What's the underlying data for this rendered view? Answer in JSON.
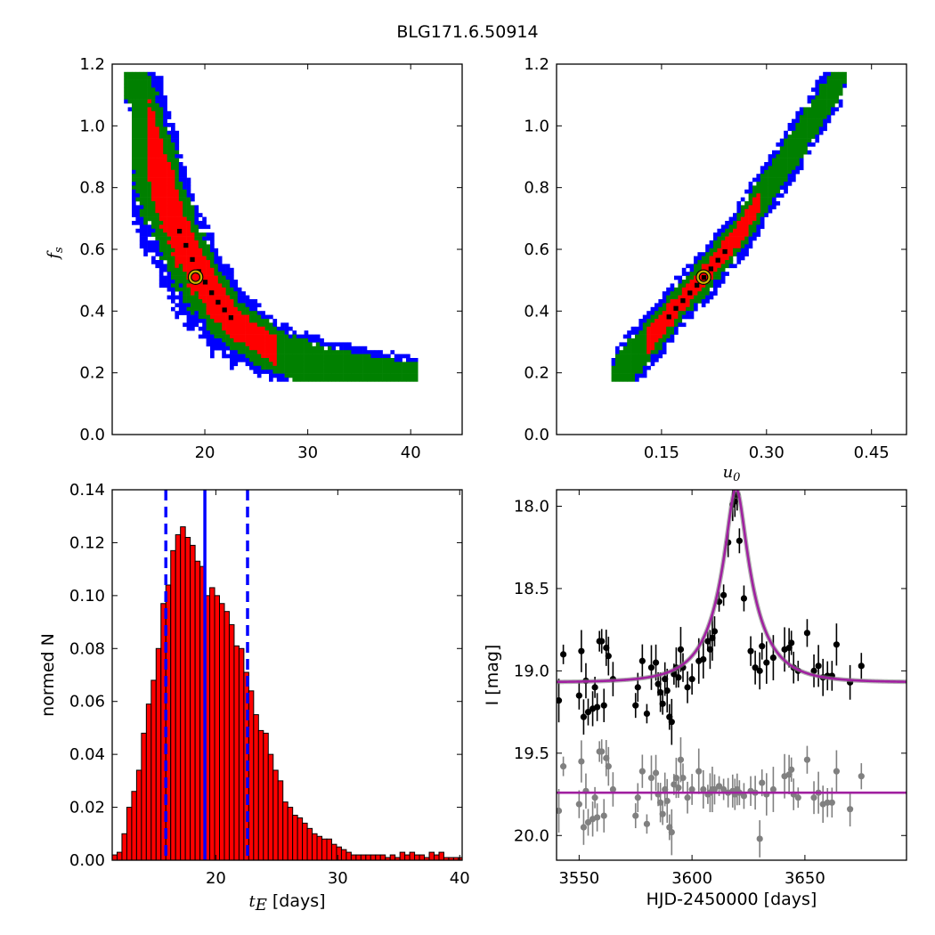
{
  "figure": {
    "title": "BLG171.6.50914"
  },
  "chart_data": [
    {
      "id": "fs_vs_tE",
      "type": "heatmap",
      "title": "",
      "xlabel": "",
      "ylabel": "f_s",
      "ylabel_display": "f",
      "ylabel_sub": "s",
      "xlim": [
        11,
        45
      ],
      "ylim": [
        0.0,
        1.2
      ],
      "xticks": [
        20,
        30,
        40
      ],
      "yticks": [
        0.0,
        0.2,
        0.4,
        0.6,
        0.8,
        1.0,
        1.2
      ],
      "ytick_labels": [
        "0.0",
        "0.2",
        "0.4",
        "0.6",
        "0.8",
        "1.0",
        "1.2"
      ],
      "levels": [
        {
          "name": "outer",
          "color": "#0000ff"
        },
        {
          "name": "middle",
          "color": "#008000"
        },
        {
          "name": "inner",
          "color": "#ff0000"
        },
        {
          "name": "best-fit cells",
          "color": "#000000"
        }
      ],
      "ridge": {
        "x": [
          12.8,
          14.5,
          16,
          17.5,
          19,
          21,
          23,
          25.5,
          28,
          31,
          34.5,
          38,
          40
        ],
        "y": [
          1.17,
          0.95,
          0.8,
          0.66,
          0.55,
          0.44,
          0.36,
          0.3,
          0.255,
          0.225,
          0.2,
          0.185,
          0.175
        ]
      },
      "widths": {
        "outer": 2.4,
        "middle": 1.7,
        "inner": 1.0
      },
      "red_range": [
        14.5,
        27
      ],
      "best_fit": {
        "x": 19.1,
        "y": 0.51,
        "color": "#c8b400"
      }
    },
    {
      "id": "fs_vs_u0",
      "type": "heatmap",
      "title": "",
      "xlabel": "u_0",
      "xlabel_display": "u",
      "xlabel_sub": "0",
      "ylabel": "",
      "xlim": [
        0.0,
        0.5
      ],
      "ylim": [
        0.0,
        1.2
      ],
      "xticks": [
        0.15,
        0.3,
        0.45
      ],
      "xtick_labels": [
        "0.15",
        "0.30",
        "0.45"
      ],
      "yticks": [
        0.0,
        0.2,
        0.4,
        0.6,
        0.8,
        1.0,
        1.2
      ],
      "ytick_labels": [
        "0.0",
        "0.2",
        "0.4",
        "0.6",
        "0.8",
        "1.0",
        "1.2"
      ],
      "ridge": {
        "x": [
          0.085,
          0.13,
          0.17,
          0.21,
          0.26,
          0.3,
          0.34,
          0.38,
          0.41
        ],
        "y": [
          0.18,
          0.3,
          0.41,
          0.51,
          0.65,
          0.79,
          0.93,
          1.07,
          1.17
        ]
      },
      "widths": {
        "outer": 0.022,
        "middle": 0.015,
        "inner": 0.008
      },
      "red_range": [
        0.13,
        0.29
      ],
      "best_fit": {
        "x": 0.21,
        "y": 0.51,
        "color": "#c8b400"
      }
    },
    {
      "id": "tE_histogram",
      "type": "bar",
      "title": "",
      "xlabel": "t_E [days]",
      "xlabel_math": "t",
      "xlabel_sub": "E",
      "xlabel_rest": " [days]",
      "ylabel": "normed N",
      "xlim": [
        11.5,
        40.2
      ],
      "ylim": [
        0.0,
        0.14
      ],
      "xticks": [
        20,
        30,
        40
      ],
      "yticks": [
        0.0,
        0.02,
        0.04,
        0.06,
        0.08,
        0.1,
        0.12,
        0.14
      ],
      "ytick_labels": [
        "0.00",
        "0.02",
        "0.04",
        "0.06",
        "0.08",
        "0.10",
        "0.12",
        "0.14"
      ],
      "bar_color": "#ff0000",
      "bin_start": 11.5,
      "bin_width": 0.4,
      "values": [
        0.002,
        0.003,
        0.01,
        0.02,
        0.026,
        0.034,
        0.048,
        0.059,
        0.068,
        0.08,
        0.097,
        0.104,
        0.117,
        0.123,
        0.126,
        0.122,
        0.119,
        0.113,
        0.111,
        0.1,
        0.103,
        0.1,
        0.097,
        0.094,
        0.089,
        0.081,
        0.08,
        0.071,
        0.064,
        0.055,
        0.049,
        0.048,
        0.04,
        0.034,
        0.03,
        0.022,
        0.02,
        0.017,
        0.016,
        0.014,
        0.012,
        0.01,
        0.009,
        0.008,
        0.008,
        0.006,
        0.005,
        0.004,
        0.003,
        0.002,
        0.002,
        0.002,
        0.002,
        0.002,
        0.002,
        0.002,
        0.001,
        0.002,
        0.001,
        0.003,
        0.002,
        0.003,
        0.002,
        0.002,
        0.001,
        0.003,
        0.002,
        0.003,
        0.001,
        0.001,
        0.001,
        0.001
      ],
      "median_line": {
        "x": 19.1,
        "color": "#0000ff"
      },
      "interval_lines": [
        15.9,
        22.6
      ]
    },
    {
      "id": "light_curve",
      "type": "scatter",
      "title": "",
      "xlabel": "HJD-2450000 [days]",
      "ylabel": "I [mag]",
      "xlim": [
        3540,
        3695
      ],
      "ylim": [
        20.15,
        17.9
      ],
      "y_inverted": true,
      "xticks": [
        3550,
        3600,
        3650
      ],
      "yticks": [
        18.0,
        18.5,
        19.0,
        19.5,
        20.0
      ],
      "ytick_labels": [
        "18.0",
        "18.5",
        "19.0",
        "19.5",
        "20.0"
      ],
      "model": {
        "t0": 3619.5,
        "tE": 19.1,
        "u0": 0.21,
        "fs": 0.51,
        "i_base": 19.07,
        "color": "#a020a0"
      },
      "residual_baseline": 19.74,
      "data_points": {
        "color": "#000000",
        "t": [
          3541,
          3543,
          3550,
          3551,
          3552,
          3553,
          3554,
          3556,
          3557,
          3558,
          3559,
          3560,
          3561,
          3562,
          3563,
          3565,
          3575,
          3576,
          3578,
          3580,
          3582,
          3584,
          3585,
          3586,
          3587,
          3588,
          3589,
          3590,
          3591,
          3592,
          3593,
          3594,
          3595,
          3596,
          3598,
          3600,
          3603,
          3605,
          3607,
          3608,
          3609,
          3610,
          3612,
          3614,
          3616,
          3618,
          3619,
          3620,
          3621,
          3623,
          3626,
          3628,
          3630,
          3631,
          3633,
          3636,
          3641,
          3643,
          3644,
          3645,
          3647,
          3651,
          3654,
          3656,
          3658,
          3660,
          3662,
          3664,
          3670,
          3675
        ],
        "mag": [
          19.18,
          18.9,
          19.15,
          18.88,
          19.28,
          19.06,
          19.25,
          19.23,
          19.1,
          19.22,
          18.82,
          18.82,
          19.21,
          18.86,
          18.91,
          19.05,
          19.21,
          19.1,
          18.94,
          19.26,
          18.98,
          18.95,
          19.08,
          19.13,
          19.2,
          19.05,
          19.12,
          19.28,
          19.31,
          19.02,
          18.98,
          19.04,
          18.87,
          18.98,
          19.1,
          19.05,
          18.94,
          18.93,
          18.82,
          18.87,
          18.8,
          18.76,
          18.58,
          18.54,
          18.22,
          17.99,
          17.97,
          17.93,
          18.21,
          18.56,
          18.88,
          18.98,
          19.0,
          18.85,
          18.95,
          18.92,
          18.87,
          18.86,
          18.83,
          18.98,
          19.0,
          18.77,
          19.0,
          18.97,
          19.04,
          19.03,
          19.03,
          18.84,
          19.07,
          18.97
        ]
      },
      "residual_points": {
        "color": "#808080",
        "t": [
          3541,
          3543,
          3550,
          3551,
          3552,
          3553,
          3554,
          3556,
          3557,
          3558,
          3559,
          3560,
          3561,
          3562,
          3563,
          3565,
          3575,
          3576,
          3578,
          3580,
          3582,
          3584,
          3585,
          3586,
          3587,
          3588,
          3589,
          3590,
          3591,
          3592,
          3593,
          3594,
          3595,
          3596,
          3598,
          3600,
          3603,
          3605,
          3607,
          3608,
          3609,
          3610,
          3612,
          3614,
          3616,
          3618,
          3619,
          3620,
          3621,
          3623,
          3626,
          3628,
          3630,
          3631,
          3633,
          3636,
          3641,
          3643,
          3644,
          3645,
          3647,
          3651,
          3654,
          3656,
          3658,
          3660,
          3662,
          3664,
          3670,
          3675
        ],
        "mag": [
          19.85,
          19.58,
          19.81,
          19.55,
          19.95,
          19.73,
          19.92,
          19.9,
          19.77,
          19.89,
          19.49,
          19.49,
          19.88,
          19.53,
          19.58,
          19.72,
          19.88,
          19.77,
          19.61,
          19.93,
          19.65,
          19.62,
          19.75,
          19.8,
          19.87,
          19.72,
          19.79,
          19.95,
          19.98,
          19.69,
          19.65,
          19.71,
          19.54,
          19.65,
          19.77,
          19.72,
          19.61,
          19.72,
          19.75,
          19.74,
          19.72,
          19.72,
          19.7,
          19.72,
          19.74,
          19.73,
          19.75,
          19.72,
          19.74,
          19.76,
          19.73,
          19.74,
          20.02,
          19.68,
          19.75,
          19.72,
          19.64,
          19.63,
          19.6,
          19.75,
          19.77,
          19.54,
          19.77,
          19.74,
          19.81,
          19.8,
          19.8,
          19.61,
          19.84,
          19.64
        ]
      },
      "error_bar_mag": 0.07
    }
  ]
}
